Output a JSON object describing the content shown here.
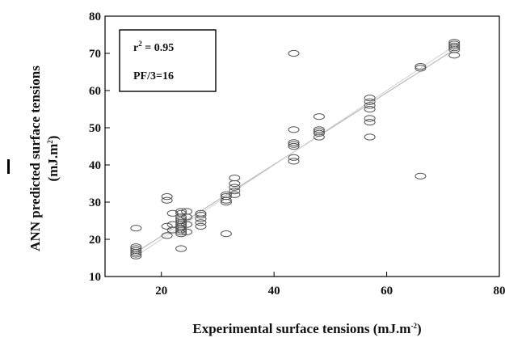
{
  "chart_data": {
    "type": "scatter",
    "xlabel": "Experimental surface tensions (mJ.m",
    "xlabel_sup": "-2",
    "xlabel_tail": ")",
    "ylabel_line1": "ANN predicted surface tensions",
    "ylabel_line2": "(mJ.m",
    "ylabel_sup": "2",
    "ylabel_tail": ")",
    "xlim": [
      10,
      80
    ],
    "ylim": [
      10,
      80
    ],
    "x_ticks": [
      20,
      40,
      60,
      80
    ],
    "y_ticks": [
      10,
      20,
      30,
      40,
      50,
      60,
      70,
      80
    ],
    "grid": false,
    "annotations": {
      "r2_label": "r",
      "r2_sup": "2",
      "r2_value": " = 0.95",
      "pf_label": "PF/3=16"
    },
    "fit_lines": [
      {
        "x": [
          15.5,
          72
        ],
        "y": [
          16.5,
          71
        ]
      },
      {
        "x": [
          15.5,
          72
        ],
        "y": [
          15.5,
          72
        ]
      }
    ],
    "points": [
      [
        15.5,
        15.5
      ],
      [
        15.5,
        16
      ],
      [
        15.5,
        16.5
      ],
      [
        15.5,
        17
      ],
      [
        15.5,
        17.5
      ],
      [
        15.5,
        18
      ],
      [
        15.5,
        23
      ],
      [
        21,
        21
      ],
      [
        21,
        23.5
      ],
      [
        21,
        30.5
      ],
      [
        21,
        31.5
      ],
      [
        22,
        22.5
      ],
      [
        22,
        24
      ],
      [
        22,
        27
      ],
      [
        23.5,
        17.5
      ],
      [
        23.5,
        21.5
      ],
      [
        23.5,
        22
      ],
      [
        23.5,
        22.5
      ],
      [
        23.5,
        23
      ],
      [
        23.5,
        23.5
      ],
      [
        23.5,
        24
      ],
      [
        23.5,
        24.5
      ],
      [
        23.5,
        25
      ],
      [
        23.5,
        25.5
      ],
      [
        23.5,
        26
      ],
      [
        23.5,
        27
      ],
      [
        23.5,
        27.5
      ],
      [
        24.5,
        22
      ],
      [
        24.5,
        24
      ],
      [
        24.5,
        26
      ],
      [
        24.5,
        27.5
      ],
      [
        27,
        23.5
      ],
      [
        27,
        24.5
      ],
      [
        27,
        25.5
      ],
      [
        27,
        26.5
      ],
      [
        27,
        27
      ],
      [
        31.5,
        21.5
      ],
      [
        31.5,
        30
      ],
      [
        31.5,
        30.5
      ],
      [
        31.5,
        31.5
      ],
      [
        31.5,
        32
      ],
      [
        33,
        32
      ],
      [
        33,
        33
      ],
      [
        33,
        34
      ],
      [
        33,
        35
      ],
      [
        33,
        36.5
      ],
      [
        43.5,
        41
      ],
      [
        43.5,
        42
      ],
      [
        43.5,
        45
      ],
      [
        43.5,
        45.5
      ],
      [
        43.5,
        46
      ],
      [
        43.5,
        49.5
      ],
      [
        43.5,
        70
      ],
      [
        48,
        47.5
      ],
      [
        48,
        48.5
      ],
      [
        48,
        49
      ],
      [
        48,
        49.5
      ],
      [
        48,
        53
      ],
      [
        57,
        47.5
      ],
      [
        57,
        51.5
      ],
      [
        57,
        52.5
      ],
      [
        57,
        55
      ],
      [
        57,
        56
      ],
      [
        57,
        57
      ],
      [
        57,
        58
      ],
      [
        66,
        37
      ],
      [
        66,
        66
      ],
      [
        66,
        66.5
      ],
      [
        72,
        69.5
      ],
      [
        72,
        71
      ],
      [
        72,
        71.5
      ],
      [
        72,
        72
      ],
      [
        72,
        72.5
      ],
      [
        72,
        73
      ]
    ]
  }
}
